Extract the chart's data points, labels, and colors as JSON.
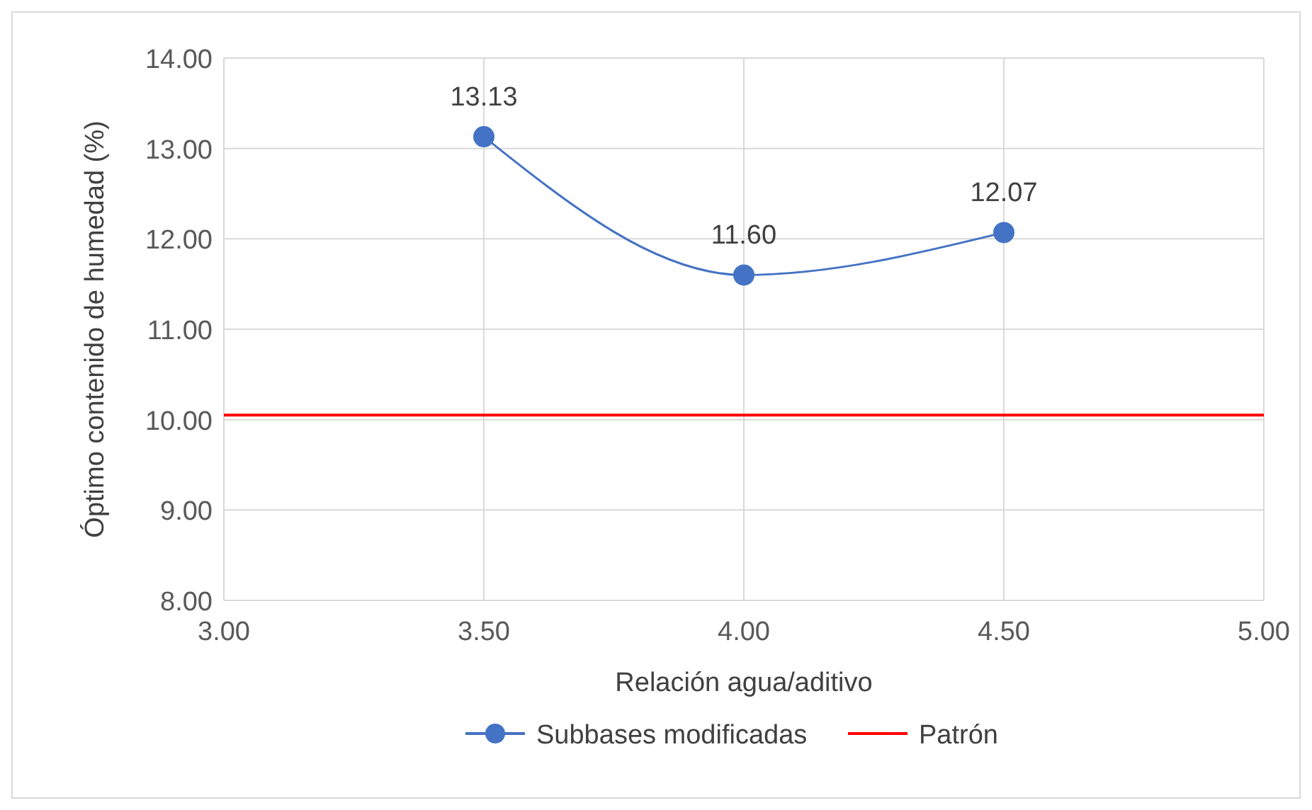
{
  "chart_data": {
    "type": "line",
    "xlabel": "Relación agua/aditivo",
    "ylabel": "Óptimo contenido de humedad (%)",
    "xlim": [
      3,
      5
    ],
    "xticks": [
      {
        "value": 3,
        "label": "3.00"
      },
      {
        "value": 3.5,
        "label": "3.50"
      },
      {
        "value": 4,
        "label": "4.00"
      },
      {
        "value": 4.5,
        "label": "4.50"
      },
      {
        "value": 5,
        "label": "5.00"
      }
    ],
    "ylim": [
      8,
      14
    ],
    "yticks": [
      {
        "value": 8,
        "label": "8.00"
      },
      {
        "value": 9,
        "label": "9.00"
      },
      {
        "value": 10,
        "label": "10.00"
      },
      {
        "value": 11,
        "label": "11.00"
      },
      {
        "value": 12,
        "label": "12.00"
      },
      {
        "value": 13,
        "label": "13.00"
      },
      {
        "value": 14,
        "label": "14.00"
      }
    ],
    "series": [
      {
        "name": "Subbases modificadas",
        "color": "#4472c4",
        "x": [
          3.5,
          4,
          4.5
        ],
        "values": [
          13.13,
          11.6,
          12.07
        ],
        "value_labels": [
          "13.13",
          "11.60",
          "12.07"
        ],
        "marker": "circle"
      },
      {
        "name": "Patrón",
        "color": "#ff0000",
        "x": [
          3,
          5
        ],
        "values": [
          10.05,
          10.05
        ],
        "marker": "none"
      }
    ],
    "grid": true,
    "legend": "bottom"
  }
}
